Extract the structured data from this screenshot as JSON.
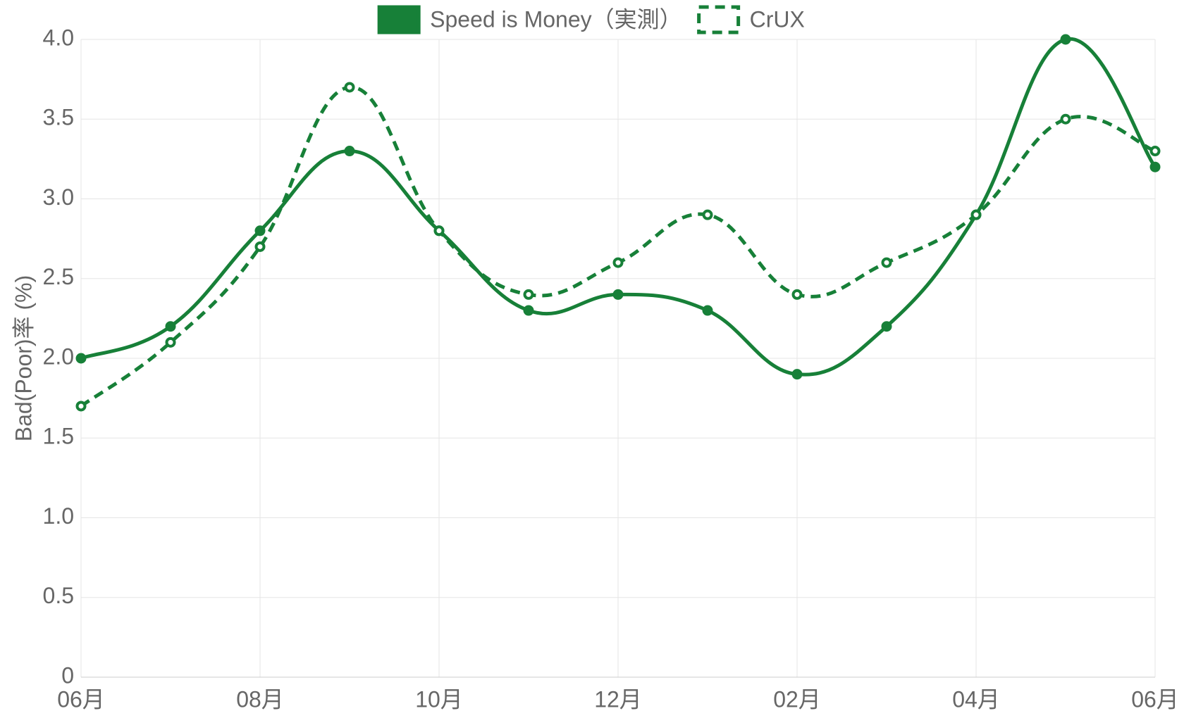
{
  "chart_data": {
    "type": "line",
    "y_label": "Bad(Poor)率 (%)",
    "categories": [
      "06月",
      null,
      "08月",
      null,
      "10月",
      null,
      "12月",
      null,
      "02月",
      null,
      "04月",
      null,
      "06月"
    ],
    "series": [
      {
        "name": "Speed is Money（実測）",
        "color": "#178038",
        "line_style": "solid",
        "marker": "filled",
        "values": [
          2.0,
          2.2,
          2.8,
          3.3,
          2.8,
          2.3,
          2.4,
          2.3,
          1.9,
          2.2,
          2.9,
          4.0,
          3.2
        ]
      },
      {
        "name": "CrUX",
        "color": "#178038",
        "line_style": "dashed",
        "marker": "hollow",
        "values": [
          1.7,
          2.1,
          2.7,
          3.7,
          2.8,
          2.4,
          2.6,
          2.9,
          2.4,
          2.6,
          2.9,
          3.5,
          3.3
        ]
      }
    ],
    "ylim": [
      0,
      4
    ],
    "yticks": [
      0,
      0.5,
      {
        "value": 1,
        "label": "1.0"
      },
      1.5,
      {
        "value": 2,
        "label": "2.0"
      },
      2.5,
      {
        "value": 3,
        "label": "3.0"
      },
      3.5,
      {
        "value": 4,
        "label": "4.0"
      }
    ],
    "grid": true,
    "legend": "top"
  }
}
